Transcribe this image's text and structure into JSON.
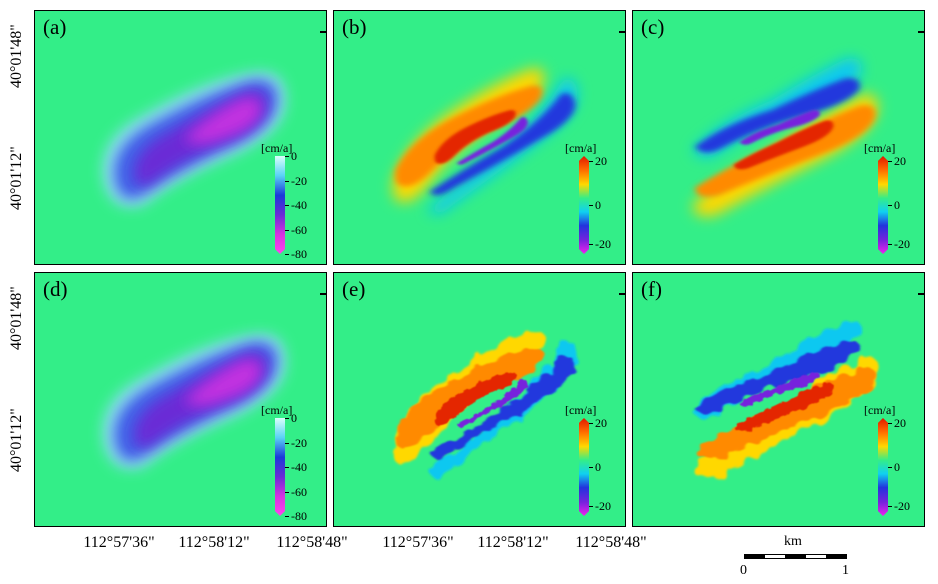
{
  "panels": [
    {
      "label": "(a)",
      "kind": "subsidence"
    },
    {
      "label": "(b)",
      "kind": "dipole"
    },
    {
      "label": "(c)",
      "kind": "dipole-inv"
    },
    {
      "label": "(d)",
      "kind": "subsidence"
    },
    {
      "label": "(e)",
      "kind": "dipole"
    },
    {
      "label": "(f)",
      "kind": "dipole-inv"
    }
  ],
  "colorbars": {
    "subsidence": {
      "unit": "[cm/a]",
      "ticks": [
        "0",
        "-20",
        "-40",
        "-60",
        "-80"
      ],
      "colors": [
        "#d9fffb",
        "#5ad2f5",
        "#1a3ad8",
        "#6a2bd6",
        "#d433e0",
        "#ff44ee"
      ]
    },
    "horizontal": {
      "unit": "[cm/a]",
      "ticks": [
        "20",
        "0",
        "-20"
      ],
      "colors": [
        "#e01800",
        "#ff6a00",
        "#ffd800",
        "#33ee88",
        "#10d0f0",
        "#2233dd",
        "#7722dd",
        "#ee22ee"
      ]
    }
  },
  "y_axis_labels": [
    "40°01'48\"",
    "40°01'12\""
  ],
  "x_axis_labels": [
    "112°57'36\"",
    "112°58'12\"",
    "112°58'48\""
  ],
  "scale_bar": {
    "unit": "km",
    "start": "0",
    "end": "1"
  }
}
